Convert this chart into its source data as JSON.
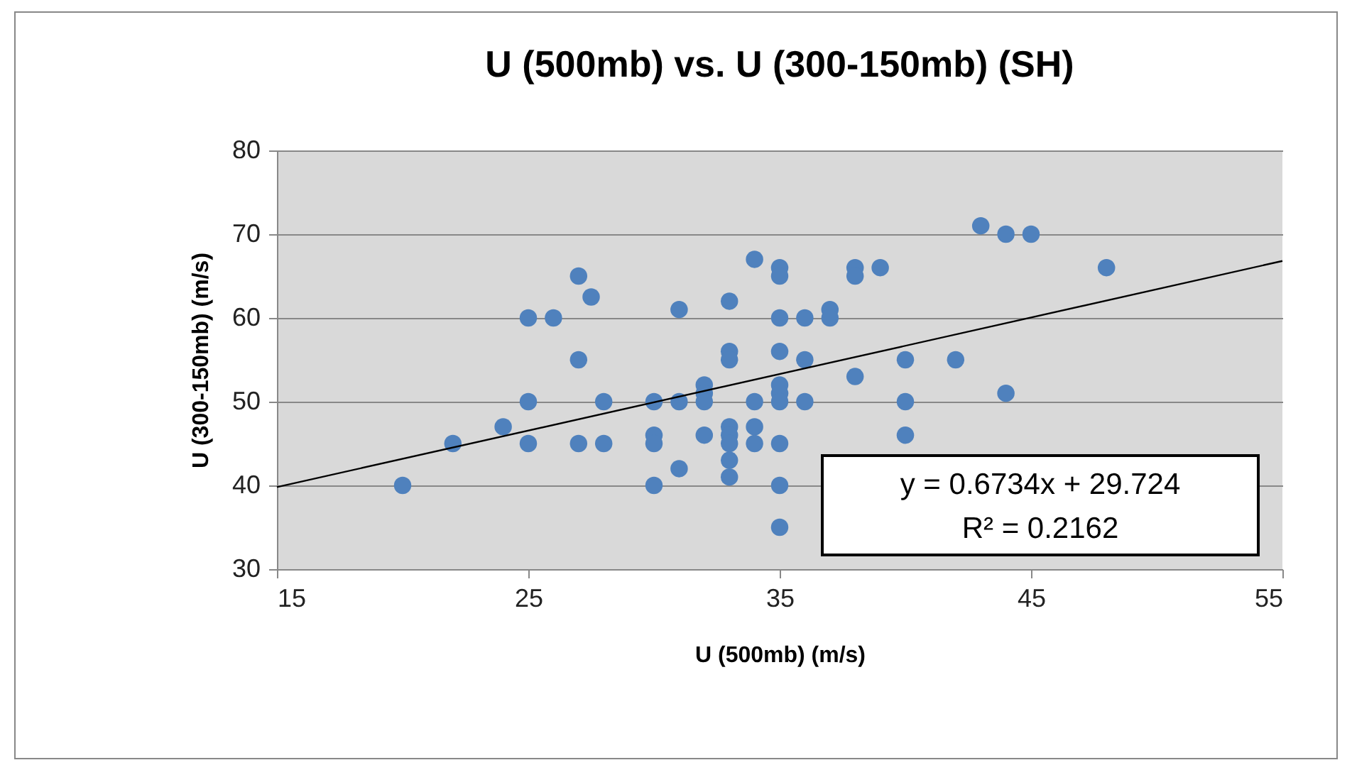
{
  "chart_data": {
    "type": "scatter",
    "title": "U (500mb) vs. U (300-150mb) (SH)",
    "xlabel": "U (500mb) (m/s)",
    "ylabel": "U (300-150mb) (m/s)",
    "xlim": [
      15,
      55
    ],
    "xticks": [
      15,
      25,
      35,
      45,
      55
    ],
    "ylim": [
      30,
      80
    ],
    "yticks": [
      30,
      40,
      50,
      60,
      70,
      80
    ],
    "grid": "y",
    "annotations": [
      "y = 0.6734x + 29.724",
      "R² = 0.2162"
    ],
    "series": [
      {
        "marker": "circle",
        "color": "#4f81bd",
        "x": [
          20,
          22,
          24,
          25,
          25,
          25,
          26,
          27,
          27,
          27.5,
          27,
          28,
          28,
          30,
          30,
          30,
          30,
          31,
          31,
          31,
          32,
          32,
          32,
          32,
          33,
          33,
          33,
          33,
          33,
          33,
          33,
          33,
          34,
          34,
          34,
          34,
          35,
          35,
          35,
          35,
          35,
          35,
          35,
          35,
          35,
          35,
          36,
          36,
          36,
          37,
          37,
          38,
          38,
          38,
          39,
          40,
          40,
          40,
          42,
          43,
          44,
          44,
          45,
          48
        ],
        "values": [
          40,
          45,
          47,
          60,
          50,
          45,
          60,
          65,
          55,
          62.5,
          45,
          50,
          45,
          50,
          46,
          45,
          40,
          61,
          50,
          42,
          52,
          51,
          50,
          46,
          62,
          56,
          55,
          47,
          46,
          45,
          43,
          41,
          67,
          50,
          47,
          45,
          66,
          65,
          60,
          56,
          52,
          51,
          50,
          45,
          40,
          35,
          60,
          55,
          50,
          61,
          60,
          66,
          65,
          53,
          66,
          55,
          50,
          46,
          55,
          71,
          70,
          51,
          70,
          66
        ]
      },
      {
        "type": "line",
        "marker": "none",
        "color": "#000000",
        "x": [
          15,
          55
        ],
        "values": [
          39.8,
          66.8
        ]
      }
    ]
  }
}
